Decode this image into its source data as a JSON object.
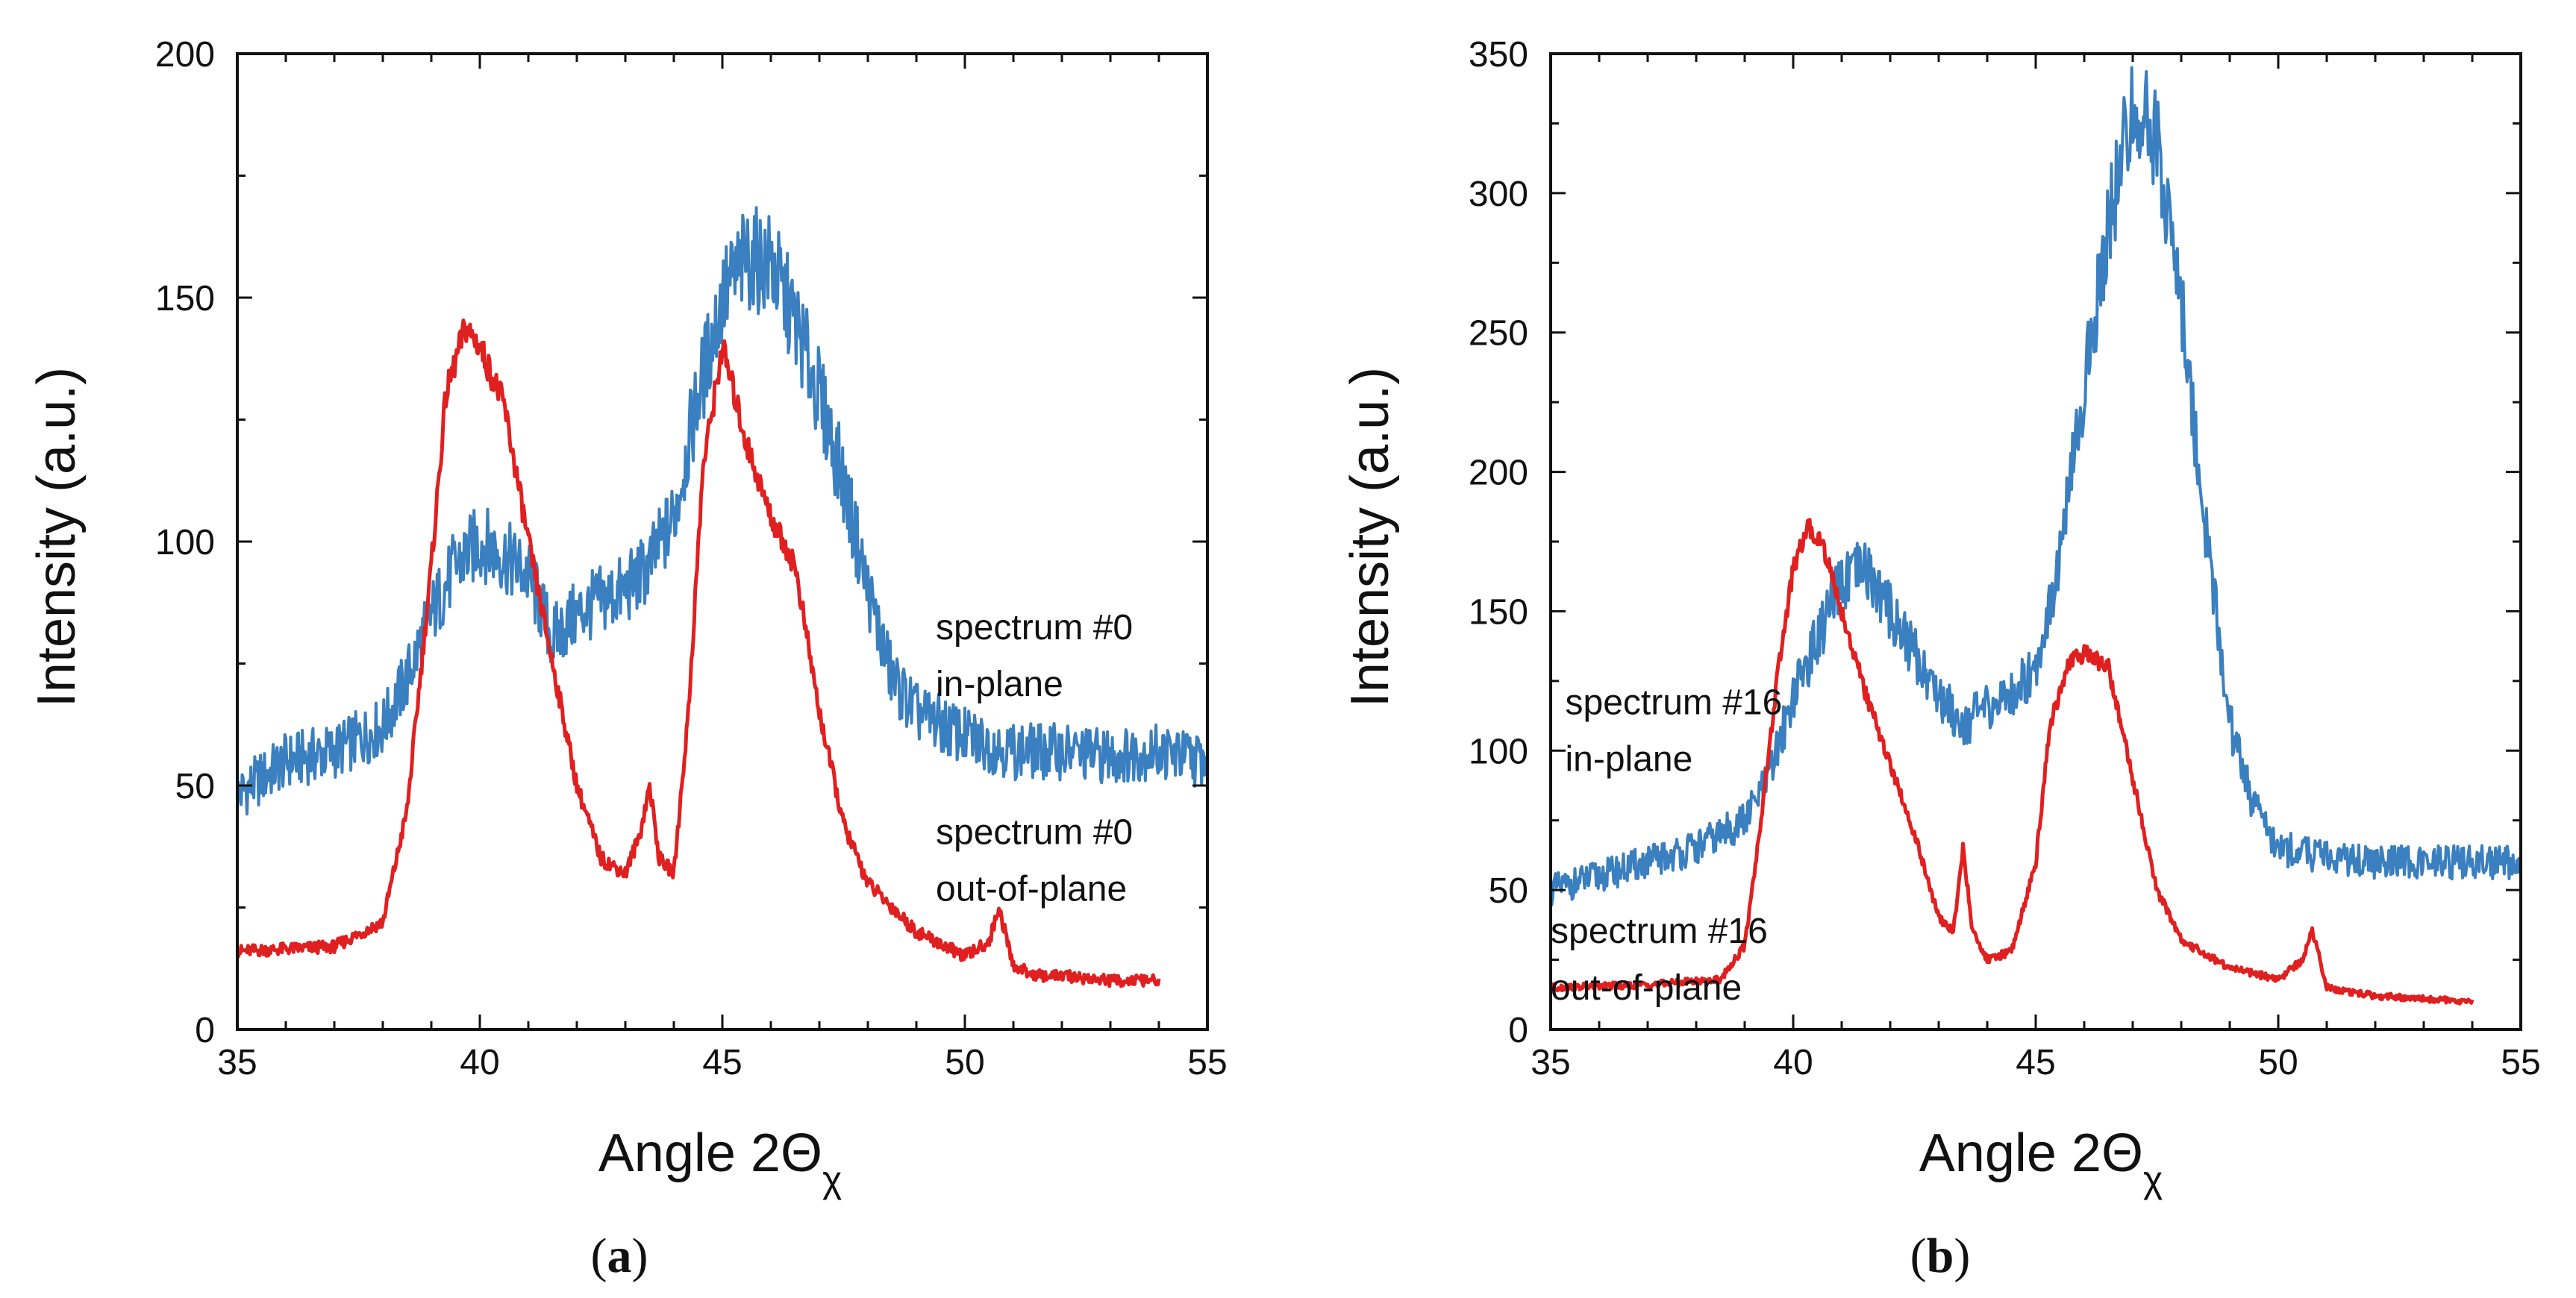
{
  "chart_data": [
    {
      "type": "line",
      "panel_label_open": "(",
      "panel_label_letter": "a",
      "panel_label_close": ")",
      "xlabel_main": "Angle 2Θ",
      "xlabel_sub": "χ",
      "ylabel": "Intensity (a.u.)",
      "xlim": [
        35,
        55
      ],
      "ylim": [
        0,
        200
      ],
      "xticks": [
        35,
        40,
        45,
        50,
        55
      ],
      "yticks": [
        0,
        50,
        100,
        150,
        200
      ],
      "annotations": [
        {
          "line1": "spectrum #0",
          "line2": "in-plane",
          "x": 49.4,
          "y": 80
        },
        {
          "line1": "spectrum #0",
          "line2": "out-of-plane",
          "x": 49.4,
          "y": 38
        }
      ],
      "series": [
        {
          "name": "spectrum #0 in-plane",
          "color": "#3a7fbf",
          "x": [
            35,
            36,
            37,
            38,
            38.5,
            39,
            39.5,
            40,
            40.5,
            41,
            41.5,
            42,
            42.5,
            43,
            43.5,
            44,
            44.5,
            45,
            45.5,
            46,
            46.5,
            47,
            47.5,
            48,
            48.5,
            49,
            50,
            51,
            52,
            53,
            54,
            55
          ],
          "values": [
            48,
            55,
            57,
            62,
            72,
            85,
            95,
            100,
            97,
            93,
            80,
            85,
            88,
            90,
            95,
            105,
            130,
            150,
            158,
            157,
            145,
            130,
            112,
            90,
            72,
            65,
            60,
            57,
            57,
            56,
            57,
            55
          ]
        },
        {
          "name": "spectrum #0 out-of-plane",
          "color": "#e02020",
          "x": [
            35,
            37,
            38,
            38.5,
            39,
            39.3,
            39.7,
            40,
            40.5,
            41,
            41.5,
            42,
            42.5,
            43,
            43.3,
            43.5,
            43.7,
            44,
            44.3,
            44.6,
            45,
            45.5,
            46,
            46.5,
            47,
            47.5,
            48,
            48.5,
            49,
            50,
            50.5,
            50.7,
            51,
            51.5,
            52,
            53,
            54
          ],
          "values": [
            16,
            17,
            22,
            45,
            95,
            130,
            144,
            140,
            128,
            100,
            75,
            50,
            35,
            32,
            40,
            50,
            35,
            32,
            65,
            115,
            140,
            120,
            105,
            95,
            65,
            42,
            30,
            25,
            20,
            15,
            18,
            25,
            13,
            11,
            11,
            10,
            10
          ]
        }
      ]
    },
    {
      "type": "line",
      "panel_label_open": "(",
      "panel_label_letter": "b",
      "panel_label_close": ")",
      "xlabel_main": "Angle 2Θ",
      "xlabel_sub": "χ",
      "ylabel": "Intensity (a.u.)",
      "xlim": [
        35,
        55
      ],
      "ylim": [
        0,
        350
      ],
      "xticks": [
        35,
        40,
        45,
        50,
        55
      ],
      "yticks": [
        0,
        50,
        100,
        150,
        200,
        250,
        300,
        350
      ],
      "annotations": [
        {
          "line1": "spectrum #16",
          "line2": "in-plane",
          "x": 35.3,
          "y": 113
        },
        {
          "line1": "spectrum #16",
          "line2": "out-of-plane",
          "x": 35.0,
          "y": 31
        }
      ],
      "series": [
        {
          "name": "spectrum #16 in-plane",
          "color": "#3a7fbf",
          "x": [
            35,
            36,
            37,
            38,
            39,
            39.5,
            40,
            40.5,
            41,
            41.5,
            42,
            42.5,
            43,
            43.5,
            44,
            44.5,
            45,
            45.5,
            46,
            46.5,
            47,
            47.5,
            48,
            48.5,
            49,
            49.5,
            50,
            51,
            52,
            53,
            54,
            55
          ],
          "values": [
            50,
            55,
            60,
            65,
            75,
            90,
            120,
            140,
            160,
            165,
            150,
            135,
            120,
            110,
            115,
            120,
            130,
            170,
            230,
            290,
            330,
            320,
            260,
            180,
            110,
            80,
            65,
            62,
            60,
            60,
            60,
            60
          ]
        },
        {
          "name": "spectrum #16 out-of-plane",
          "color": "#e02020",
          "x": [
            35,
            37,
            38.5,
            39,
            39.3,
            39.7,
            40,
            40.3,
            40.6,
            41,
            41.5,
            42,
            42.5,
            43,
            43.3,
            43.5,
            43.7,
            44,
            44.5,
            45,
            45.3,
            45.7,
            46,
            46.5,
            47,
            47.5,
            48,
            49,
            50,
            50.5,
            50.7,
            51,
            52,
            53,
            54
          ],
          "values": [
            15,
            16,
            18,
            30,
            70,
            130,
            165,
            180,
            175,
            150,
            120,
            95,
            70,
            40,
            35,
            65,
            35,
            25,
            28,
            60,
            110,
            132,
            135,
            130,
            90,
            50,
            32,
            22,
            18,
            25,
            36,
            15,
            12,
            11,
            10
          ]
        }
      ]
    }
  ]
}
